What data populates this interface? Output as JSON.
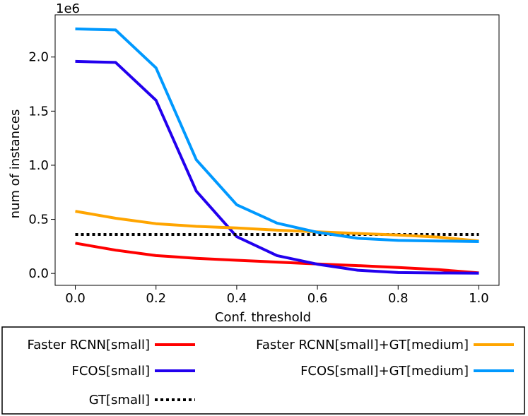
{
  "chart_data": {
    "type": "line",
    "x": [
      0.0,
      0.1,
      0.2,
      0.3,
      0.4,
      0.5,
      0.6,
      0.7,
      0.8,
      0.9,
      1.0
    ],
    "series": [
      {
        "name": "Faster RCNN[small]",
        "color": "#ff0000",
        "style": "solid",
        "values": [
          280000,
          215000,
          165000,
          140000,
          122000,
          105000,
          88000,
          72000,
          55000,
          35000,
          5000
        ]
      },
      {
        "name": "FCOS[small]",
        "color": "#2200ee",
        "style": "solid",
        "values": [
          1960000,
          1950000,
          1600000,
          760000,
          340000,
          165000,
          85000,
          30000,
          8000,
          4000,
          3000
        ]
      },
      {
        "name": "GT[small]",
        "color": "#000000",
        "style": "dotted",
        "values": [
          360000,
          360000,
          360000,
          360000,
          360000,
          360000,
          360000,
          360000,
          360000,
          360000,
          360000
        ]
      },
      {
        "name": "Faster RCNN[small]+GT[medium]",
        "color": "#ffa500",
        "style": "solid",
        "values": [
          575000,
          510000,
          460000,
          435000,
          420000,
          400000,
          385000,
          370000,
          355000,
          335000,
          300000
        ]
      },
      {
        "name": "FCOS[small]+GT[medium]",
        "color": "#0099ff",
        "style": "solid",
        "values": [
          2260000,
          2250000,
          1900000,
          1050000,
          635000,
          465000,
          380000,
          325000,
          305000,
          300000,
          295000
        ]
      }
    ],
    "xlabel": "Conf. threshold",
    "ylabel": "num of instances",
    "offset_label": "1e6",
    "xlim": [
      -0.05,
      1.05
    ],
    "ylim": [
      -110000,
      2390000
    ],
    "xticks": [
      0.0,
      0.2,
      0.4,
      0.6,
      0.8,
      1.0
    ],
    "xtick_labels": [
      "0.0",
      "0.2",
      "0.4",
      "0.6",
      "0.8",
      "1.0"
    ],
    "yticks": [
      0,
      500000,
      1000000,
      1500000,
      2000000
    ],
    "ytick_labels": [
      "0.0",
      "0.5",
      "1.0",
      "1.5",
      "2.0"
    ],
    "grid": false,
    "legend_placement": "below",
    "legend_order": [
      [
        "Faster RCNN[small]",
        "Faster RCNN[small]+GT[medium]"
      ],
      [
        "FCOS[small]",
        "FCOS[small]+GT[medium]"
      ],
      [
        "GT[small]"
      ]
    ]
  }
}
